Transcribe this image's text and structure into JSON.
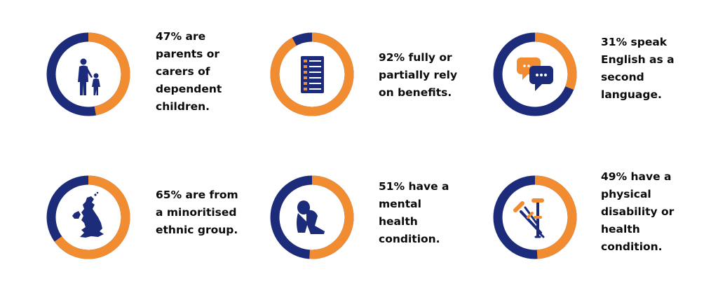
{
  "colors": {
    "navy": "#1c2c7a",
    "orange": "#f28c30",
    "white": "#ffffff",
    "text": "#0b0b0b"
  },
  "chart_data": {
    "type": "donut",
    "title": "",
    "unit": "%",
    "items": [
      {
        "value": 47,
        "icon": "parent-and-child-icon",
        "lines": [
          "47% are",
          "parents or",
          "carers of",
          "dependent",
          "children."
        ]
      },
      {
        "value": 92,
        "icon": "checklist-form-icon",
        "lines": [
          "92% fully or",
          "partially rely",
          "on benefits."
        ]
      },
      {
        "value": 31,
        "icon": "speech-bubbles-icon",
        "lines": [
          "31% speak",
          "English as a",
          "second",
          "language."
        ]
      },
      {
        "value": 65,
        "icon": "uk-map-icon",
        "lines": [
          "65% are from",
          "a minoritised",
          "ethnic group."
        ]
      },
      {
        "value": 51,
        "icon": "person-head-on-knees-icon",
        "lines": [
          "51% have a",
          "mental",
          "health",
          "condition."
        ]
      },
      {
        "value": 49,
        "icon": "crutches-icon",
        "lines": [
          "49% have a",
          "physical",
          "disability or",
          "health",
          "condition."
        ]
      }
    ]
  }
}
